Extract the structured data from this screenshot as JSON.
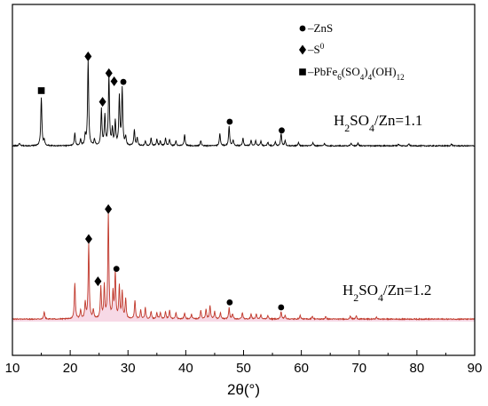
{
  "chart_data": {
    "type": "line",
    "xlabel": "2θ(°)",
    "xlim": [
      10,
      90
    ],
    "xticks": [
      10,
      20,
      30,
      40,
      50,
      60,
      70,
      80,
      90
    ],
    "y_axis_labels": false,
    "grid": false,
    "legend": {
      "placement": "top-right",
      "entries": [
        {
          "marker": "circle",
          "prefix": "–",
          "parts": [
            {
              "t": "ZnS"
            }
          ]
        },
        {
          "marker": "diamond",
          "prefix": "–",
          "parts": [
            {
              "t": "S"
            },
            {
              "t": "0",
              "sup": true
            }
          ]
        },
        {
          "marker": "square",
          "prefix": "–",
          "parts": [
            {
              "t": "PbFe"
            },
            {
              "t": "6",
              "sub": true
            },
            {
              "t": "(SO"
            },
            {
              "t": "4",
              "sub": true
            },
            {
              "t": ")"
            },
            {
              "t": "4",
              "sub": true
            },
            {
              "t": "(OH)"
            },
            {
              "t": "12",
              "sub": true
            }
          ]
        }
      ]
    },
    "series": [
      {
        "label_parts": [
          {
            "t": "H"
          },
          {
            "t": "2",
            "sub": true
          },
          {
            "t": "SO"
          },
          {
            "t": "4",
            "sub": true
          },
          {
            "t": "/Zn=1.1"
          }
        ],
        "color": "#000000",
        "fill": "none",
        "baseline": 0,
        "peaks": [
          [
            11.2,
            4
          ],
          [
            15.0,
            78
          ],
          [
            15.5,
            8
          ],
          [
            20.8,
            20
          ],
          [
            21.8,
            10
          ],
          [
            22.6,
            16
          ],
          [
            23.1,
            137
          ],
          [
            24.2,
            10
          ],
          [
            25.4,
            58
          ],
          [
            26.0,
            48
          ],
          [
            26.7,
            112
          ],
          [
            27.3,
            26
          ],
          [
            27.8,
            38
          ],
          [
            28.5,
            78
          ],
          [
            29.0,
            90
          ],
          [
            29.6,
            14
          ],
          [
            31.1,
            25
          ],
          [
            31.6,
            12
          ],
          [
            33.0,
            8
          ],
          [
            34.0,
            12
          ],
          [
            35.0,
            10
          ],
          [
            35.6,
            8
          ],
          [
            36.5,
            12
          ],
          [
            37.2,
            10
          ],
          [
            38.3,
            8
          ],
          [
            39.8,
            18
          ],
          [
            42.6,
            8
          ],
          [
            45.9,
            20
          ],
          [
            47.5,
            32
          ],
          [
            48.2,
            9
          ],
          [
            49.9,
            12
          ],
          [
            51.3,
            9
          ],
          [
            52.1,
            8
          ],
          [
            53.0,
            8
          ],
          [
            54.2,
            6
          ],
          [
            55.5,
            6
          ],
          [
            56.5,
            20
          ],
          [
            57.2,
            8
          ],
          [
            59.5,
            5
          ],
          [
            62.0,
            5
          ],
          [
            64.0,
            4
          ],
          [
            68.6,
            4
          ],
          [
            69.8,
            4
          ],
          [
            76.8,
            3
          ],
          [
            78.6,
            3
          ],
          [
            86.0,
            3
          ]
        ],
        "markers": [
          {
            "type": "diamond",
            "x": 23.1,
            "y": 145
          },
          {
            "type": "diamond",
            "x": 26.7,
            "y": 118
          },
          {
            "type": "diamond",
            "x": 27.6,
            "y": 105
          },
          {
            "type": "diamond",
            "x": 25.6,
            "y": 72
          },
          {
            "type": "circle",
            "x": 29.2,
            "y": 104
          },
          {
            "type": "square",
            "x": 15.0,
            "y": 90
          },
          {
            "type": "circle",
            "x": 47.6,
            "y": 40
          },
          {
            "type": "circle",
            "x": 56.6,
            "y": 26
          }
        ]
      },
      {
        "label_parts": [
          {
            "t": "H"
          },
          {
            "t": "2",
            "sub": true
          },
          {
            "t": "SO"
          },
          {
            "t": "4",
            "sub": true
          },
          {
            "t": "/Zn=1.2"
          }
        ],
        "color": "#c0392b",
        "fill": "#f5cfe0",
        "baseline": -195,
        "peaks": [
          [
            15.5,
            12
          ],
          [
            20.8,
            58
          ],
          [
            21.8,
            14
          ],
          [
            22.6,
            26
          ],
          [
            23.2,
            120
          ],
          [
            24.0,
            14
          ],
          [
            25.3,
            50
          ],
          [
            25.9,
            52
          ],
          [
            26.6,
            170
          ],
          [
            27.4,
            40
          ],
          [
            27.8,
            74
          ],
          [
            28.5,
            52
          ],
          [
            29.0,
            42
          ],
          [
            29.6,
            32
          ],
          [
            31.2,
            30
          ],
          [
            32.2,
            14
          ],
          [
            33.0,
            18
          ],
          [
            34.0,
            12
          ],
          [
            35.0,
            10
          ],
          [
            35.6,
            10
          ],
          [
            36.5,
            12
          ],
          [
            37.2,
            14
          ],
          [
            38.3,
            10
          ],
          [
            39.8,
            10
          ],
          [
            41.0,
            8
          ],
          [
            42.6,
            14
          ],
          [
            43.5,
            16
          ],
          [
            44.2,
            22
          ],
          [
            45.0,
            12
          ],
          [
            46.0,
            10
          ],
          [
            47.5,
            18
          ],
          [
            48.1,
            8
          ],
          [
            49.8,
            10
          ],
          [
            51.3,
            8
          ],
          [
            52.2,
            8
          ],
          [
            53.0,
            7
          ],
          [
            54.2,
            6
          ],
          [
            56.5,
            12
          ],
          [
            57.2,
            6
          ],
          [
            59.8,
            6
          ],
          [
            61.9,
            5
          ],
          [
            64.2,
            4
          ],
          [
            68.5,
            5
          ],
          [
            69.5,
            5
          ],
          [
            73.0,
            3
          ]
        ],
        "markers": [
          {
            "type": "diamond",
            "x": 26.6,
            "y": 178
          },
          {
            "type": "diamond",
            "x": 23.2,
            "y": 130
          },
          {
            "type": "circle",
            "x": 28.0,
            "y": 82
          },
          {
            "type": "diamond",
            "x": 24.8,
            "y": 62
          },
          {
            "type": "circle",
            "x": 47.6,
            "y": 28
          },
          {
            "type": "circle",
            "x": 56.5,
            "y": 20
          }
        ]
      }
    ]
  }
}
